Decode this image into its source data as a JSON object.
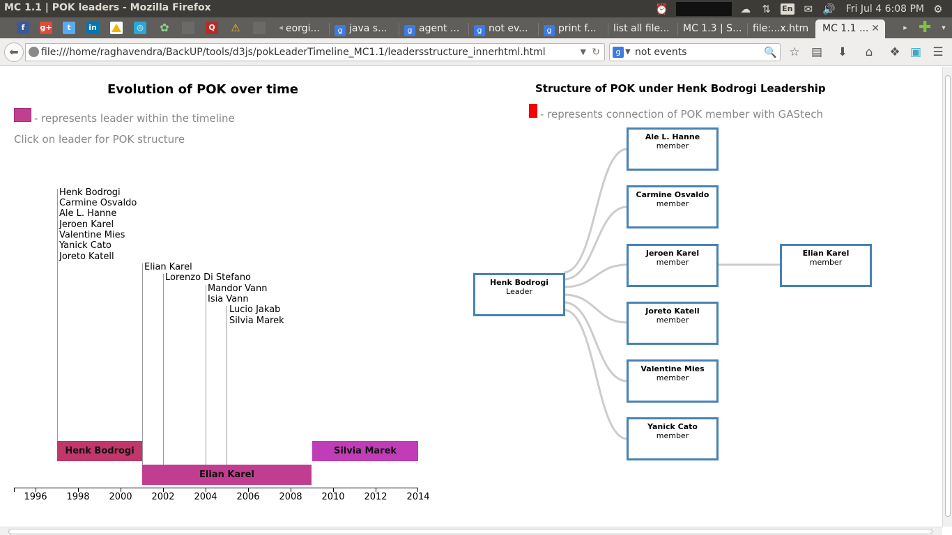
{
  "window_title": "MC 1.1 | POK leaders - Mozilla Firefox",
  "system_tray": {
    "language": "En",
    "clock": "Fri Jul 4  6:08 PM"
  },
  "tabs": [
    {
      "label": "eorgi..."
    },
    {
      "label": "java s..."
    },
    {
      "label": "agent ..."
    },
    {
      "label": "not ev..."
    },
    {
      "label": "print f..."
    },
    {
      "label": "list all file..."
    },
    {
      "label": "MC 1.3 | S..."
    },
    {
      "label": "file:...x.htm"
    },
    {
      "label": "MC 1.1 ..."
    }
  ],
  "bookmark_icons": [
    "facebook-icon",
    "google-plus-icon",
    "twitter-icon",
    "linkedin-icon",
    "google-drive-icon",
    "app-icon",
    "puzzle-icon",
    "blank-icon",
    "quora-icon",
    "warning-icon",
    "blank-icon-2"
  ],
  "url": "file:///home/raghavendra/BackUP/tools/d3js/pokLeaderTimeline_MC1.1/leadersstructure_innerhtml.html",
  "search_text": "not events",
  "left_panel": {
    "title": "Evolution of POK over time",
    "legend": "- represents leader within the timeline",
    "hint": "Click on leader for POK structure",
    "timeline": {
      "axis_ticks": [
        "1996",
        "1998",
        "2000",
        "2002",
        "2004",
        "2006",
        "2008",
        "2010",
        "2012",
        "2014"
      ],
      "member_groups": [
        {
          "year": "1997",
          "names": [
            "Henk Bodrogi",
            "Carmine Osvaldo",
            "Ale L. Hanne",
            "Jeroen Karel",
            "Valentine Mies",
            "Yanick Cato",
            "Joreto Katell"
          ]
        },
        {
          "year": "2001",
          "names": [
            "Elian Karel"
          ]
        },
        {
          "year": "2002",
          "names": [
            "Lorenzo Di Stefano"
          ]
        },
        {
          "year": "2004",
          "names": [
            "Mandor Vann",
            "Isia Vann"
          ]
        },
        {
          "year": "2005",
          "names": [
            "Lucio Jakab",
            "Silvia Marek"
          ]
        }
      ],
      "leaders": [
        {
          "name": "Henk Bodrogi",
          "start": "1997",
          "end": "2001",
          "color": "#c1366b"
        },
        {
          "name": "Elian Karel",
          "start": "2001",
          "end": "2009",
          "color": "#c13d8f"
        },
        {
          "name": "Silvia Marek",
          "start": "2009",
          "end": "2014",
          "color": "#c13db7"
        }
      ]
    }
  },
  "right_panel": {
    "title": "Structure of POK under Henk Bodrogi Leadership",
    "legend": "- represents connection of POK member with GAStech",
    "leader": {
      "name": "Henk Bodrogi",
      "role": "Leader"
    },
    "members": [
      {
        "name": "Ale L. Hanne",
        "role": "member"
      },
      {
        "name": "Carmine Osvaldo",
        "role": "member"
      },
      {
        "name": "Jeroen Karel",
        "role": "member"
      },
      {
        "name": "Joreto Katell",
        "role": "member"
      },
      {
        "name": "Valentine Mies",
        "role": "member"
      },
      {
        "name": "Yanick Cato",
        "role": "member"
      }
    ],
    "sub_member": {
      "name": "Elian Karel",
      "role": "member"
    }
  }
}
